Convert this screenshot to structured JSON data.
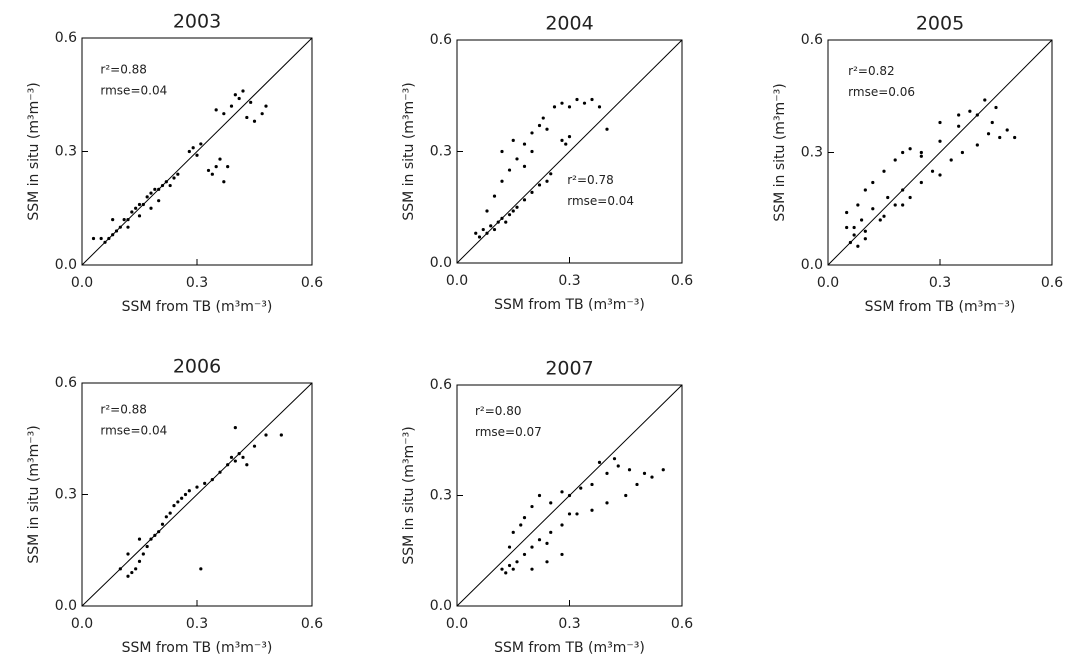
{
  "chart_data": [
    {
      "type": "scatter",
      "title": "2003",
      "xlabel": "SSM from TB (m³m⁻³)",
      "ylabel": "SSM in situ (m³m⁻³)",
      "annotations": [
        "r²=0.88",
        "rmse=0.04"
      ],
      "xlim": [
        0,
        0.6
      ],
      "ylim": [
        0,
        0.6
      ],
      "xticks": [
        {
          "value": 0,
          "label": "0.0"
        },
        0.3,
        0.6
      ],
      "yticks": [
        {
          "value": 0,
          "label": "0.0"
        },
        0.3,
        0.6
      ],
      "color": "#000000",
      "x": [
        0.03,
        0.05,
        0.06,
        0.07,
        0.08,
        0.09,
        0.1,
        0.11,
        0.12,
        0.13,
        0.14,
        0.15,
        0.16,
        0.17,
        0.18,
        0.19,
        0.2,
        0.21,
        0.22,
        0.23,
        0.24,
        0.25,
        0.08,
        0.12,
        0.15,
        0.18,
        0.2,
        0.28,
        0.29,
        0.3,
        0.31,
        0.33,
        0.34,
        0.35,
        0.36,
        0.37,
        0.38,
        0.35,
        0.37,
        0.39,
        0.4,
        0.41,
        0.42,
        0.43,
        0.44,
        0.45,
        0.47,
        0.48
      ],
      "y": [
        0.07,
        0.07,
        0.06,
        0.07,
        0.08,
        0.09,
        0.1,
        0.12,
        0.12,
        0.14,
        0.15,
        0.16,
        0.16,
        0.18,
        0.19,
        0.2,
        0.2,
        0.21,
        0.22,
        0.21,
        0.23,
        0.24,
        0.12,
        0.1,
        0.13,
        0.15,
        0.17,
        0.3,
        0.31,
        0.29,
        0.32,
        0.25,
        0.24,
        0.26,
        0.28,
        0.22,
        0.26,
        0.41,
        0.4,
        0.42,
        0.45,
        0.44,
        0.46,
        0.39,
        0.43,
        0.38,
        0.4,
        0.42
      ]
    },
    {
      "type": "scatter",
      "title": "2004",
      "xlabel": "SSM from TB (m³m⁻³)",
      "ylabel": "SSM in situ (m³m⁻³)",
      "annotations": [
        "r²=0.78",
        "rmse=0.04"
      ],
      "xlim": [
        0,
        0.6
      ],
      "ylim": [
        0,
        0.6
      ],
      "xticks": [
        {
          "value": 0,
          "label": "0.0"
        },
        0.3,
        0.6
      ],
      "yticks": [
        {
          "value": 0,
          "label": "0.0"
        },
        0.3,
        0.6
      ],
      "color": "#000000",
      "x": [
        0.05,
        0.06,
        0.07,
        0.08,
        0.09,
        0.1,
        0.11,
        0.12,
        0.13,
        0.14,
        0.15,
        0.16,
        0.18,
        0.2,
        0.22,
        0.24,
        0.25,
        0.08,
        0.1,
        0.12,
        0.14,
        0.16,
        0.18,
        0.2,
        0.12,
        0.15,
        0.18,
        0.22,
        0.24,
        0.2,
        0.23,
        0.26,
        0.28,
        0.3,
        0.32,
        0.34,
        0.36,
        0.38,
        0.4,
        0.28,
        0.29,
        0.3
      ],
      "y": [
        0.08,
        0.07,
        0.09,
        0.08,
        0.1,
        0.09,
        0.11,
        0.12,
        0.11,
        0.13,
        0.14,
        0.15,
        0.17,
        0.19,
        0.21,
        0.22,
        0.24,
        0.14,
        0.18,
        0.22,
        0.25,
        0.28,
        0.26,
        0.3,
        0.3,
        0.33,
        0.32,
        0.37,
        0.36,
        0.35,
        0.39,
        0.42,
        0.43,
        0.42,
        0.44,
        0.43,
        0.44,
        0.42,
        0.36,
        0.33,
        0.32,
        0.34
      ]
    },
    {
      "type": "scatter",
      "title": "2005",
      "xlabel": "SSM from TB (m³m⁻³)",
      "ylabel": "SSM in situ (m³m⁻³)",
      "annotations": [
        "r²=0.82",
        "rmse=0.06"
      ],
      "xlim": [
        0,
        0.6
      ],
      "ylim": [
        0,
        0.6
      ],
      "xticks": [
        {
          "value": 0,
          "label": "0.0"
        },
        0.3,
        0.6
      ],
      "yticks": [
        {
          "value": 0,
          "label": "0.0"
        },
        0.3,
        0.6
      ],
      "color": "#000000",
      "x": [
        0.05,
        0.06,
        0.07,
        0.08,
        0.09,
        0.1,
        0.12,
        0.14,
        0.16,
        0.18,
        0.2,
        0.22,
        0.25,
        0.28,
        0.3,
        0.33,
        0.36,
        0.4,
        0.43,
        0.46,
        0.48,
        0.5,
        0.08,
        0.1,
        0.12,
        0.15,
        0.18,
        0.2,
        0.22,
        0.25,
        0.3,
        0.35,
        0.4,
        0.45,
        0.05,
        0.07,
        0.1,
        0.15,
        0.2,
        0.25,
        0.3,
        0.35,
        0.38,
        0.42,
        0.44
      ],
      "y": [
        0.1,
        0.06,
        0.08,
        0.05,
        0.12,
        0.07,
        0.15,
        0.12,
        0.18,
        0.16,
        0.2,
        0.18,
        0.22,
        0.25,
        0.24,
        0.28,
        0.3,
        0.32,
        0.35,
        0.34,
        0.36,
        0.34,
        0.16,
        0.2,
        0.22,
        0.25,
        0.28,
        0.3,
        0.31,
        0.29,
        0.33,
        0.37,
        0.4,
        0.42,
        0.14,
        0.1,
        0.09,
        0.13,
        0.16,
        0.3,
        0.38,
        0.4,
        0.41,
        0.44,
        0.38
      ]
    },
    {
      "type": "scatter",
      "title": "2006",
      "xlabel": "SSM from TB (m³m⁻³)",
      "ylabel": "SSM in situ (m³m⁻³)",
      "annotations": [
        "r²=0.88",
        "rmse=0.04"
      ],
      "xlim": [
        0,
        0.6
      ],
      "ylim": [
        0,
        0.6
      ],
      "xticks": [
        {
          "value": 0,
          "label": "0.0"
        },
        0.3,
        0.6
      ],
      "yticks": [
        {
          "value": 0,
          "label": "0.0"
        },
        0.3,
        0.6
      ],
      "color": "#000000",
      "x": [
        0.1,
        0.12,
        0.13,
        0.14,
        0.15,
        0.16,
        0.17,
        0.18,
        0.19,
        0.2,
        0.21,
        0.22,
        0.23,
        0.24,
        0.25,
        0.26,
        0.27,
        0.28,
        0.3,
        0.32,
        0.34,
        0.36,
        0.38,
        0.39,
        0.4,
        0.41,
        0.42,
        0.43,
        0.4,
        0.45,
        0.48,
        0.52,
        0.31,
        0.12,
        0.15
      ],
      "y": [
        0.1,
        0.08,
        0.09,
        0.1,
        0.12,
        0.14,
        0.16,
        0.18,
        0.19,
        0.2,
        0.22,
        0.24,
        0.25,
        0.27,
        0.28,
        0.29,
        0.3,
        0.31,
        0.32,
        0.33,
        0.34,
        0.36,
        0.38,
        0.4,
        0.39,
        0.41,
        0.4,
        0.38,
        0.48,
        0.43,
        0.46,
        0.46,
        0.1,
        0.14,
        0.18
      ]
    },
    {
      "type": "scatter",
      "title": "2007",
      "xlabel": "SSM from TB (m³m⁻³)",
      "ylabel": "SSM in situ (m³m⁻³)",
      "annotations": [
        "r²=0.80",
        "rmse=0.07"
      ],
      "xlim": [
        0,
        0.6
      ],
      "ylim": [
        0,
        0.6
      ],
      "xticks": [
        {
          "value": 0,
          "label": "0.0"
        },
        0.3,
        0.6
      ],
      "yticks": [
        {
          "value": 0,
          "label": "0.0"
        },
        0.3,
        0.6
      ],
      "color": "#000000",
      "x": [
        0.12,
        0.13,
        0.14,
        0.15,
        0.16,
        0.18,
        0.2,
        0.22,
        0.24,
        0.25,
        0.28,
        0.3,
        0.15,
        0.18,
        0.2,
        0.22,
        0.25,
        0.28,
        0.3,
        0.33,
        0.36,
        0.4,
        0.43,
        0.46,
        0.5,
        0.52,
        0.55,
        0.2,
        0.24,
        0.28,
        0.32,
        0.36,
        0.4,
        0.45,
        0.48,
        0.42,
        0.38,
        0.14,
        0.17
      ],
      "y": [
        0.1,
        0.09,
        0.11,
        0.1,
        0.12,
        0.14,
        0.16,
        0.18,
        0.17,
        0.2,
        0.22,
        0.25,
        0.2,
        0.24,
        0.27,
        0.3,
        0.28,
        0.31,
        0.3,
        0.32,
        0.33,
        0.36,
        0.38,
        0.37,
        0.36,
        0.35,
        0.37,
        0.1,
        0.12,
        0.14,
        0.25,
        0.26,
        0.28,
        0.3,
        0.33,
        0.4,
        0.39,
        0.16,
        0.22
      ]
    }
  ]
}
